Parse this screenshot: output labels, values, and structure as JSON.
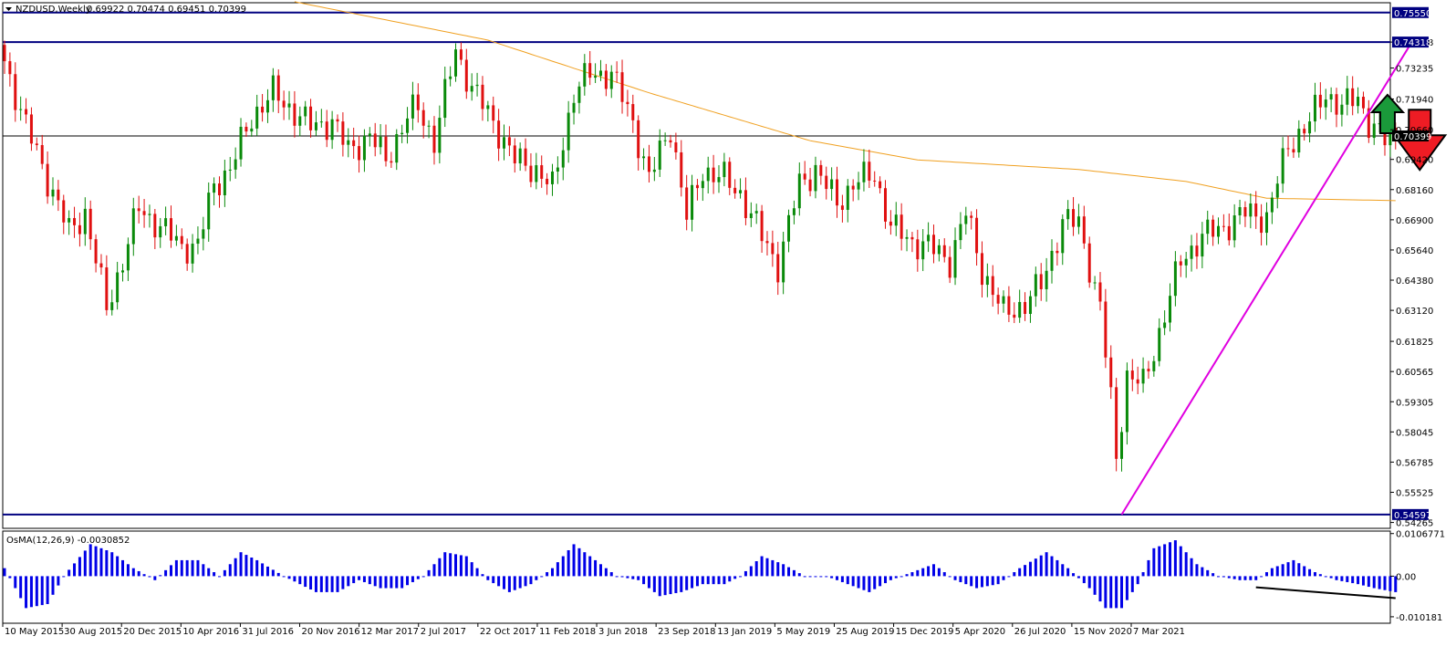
{
  "main_title": {
    "symbol": "NZDUSD,Weekly",
    "ohlc": "0.69922 0.70474 0.69451 0.70399"
  },
  "osma_title": "OsMA(12,26,9) -0.0030852",
  "colors": {
    "background": "#d6d6d6",
    "bull": "#0a8a0a",
    "bear": "#e01010",
    "ma": "#f0a020",
    "trendline": "#e000e0",
    "hline": "#000080",
    "histogram": "#0000e8",
    "divergence": "#000000",
    "up_arrow": "#1a9a3a",
    "down_arrow": "#ee1c24"
  },
  "icons": {
    "up_arrow": "up-arrow-icon",
    "down_arrow": "down-arrow-icon",
    "title_triangle": "dropdown-triangle-icon"
  },
  "chart_data": [
    {
      "type": "candlestick",
      "symbol": "NZDUSD",
      "timeframe": "Weekly",
      "y_ticks": [
        "0.74318",
        "0.73235",
        "0.71940",
        "0.70660",
        "0.69420",
        "0.68160",
        "0.66900",
        "0.65640",
        "0.64380",
        "0.63120",
        "0.61825",
        "0.60565",
        "0.59305",
        "0.58045",
        "0.56785",
        "0.55525",
        "0.54265"
      ],
      "x_ticks": [
        "10 May 2015",
        "30 Aug 2015",
        "20 Dec 2015",
        "10 Apr 2016",
        "31 Jul 2016",
        "20 Nov 2016",
        "12 Mar 2017",
        "2 Jul 2017",
        "22 Oct 2017",
        "11 Feb 2018",
        "3 Jun 2018",
        "23 Sep 2018",
        "13 Jan 2019",
        "5 May 2019",
        "25 Aug 2019",
        "15 Dec 2019",
        "5 Apr 2020",
        "26 Jul 2020",
        "15 Nov 2020",
        "7 Mar 2021"
      ],
      "horizontal_levels": [
        {
          "value": 0.7555,
          "label": "0.75550"
        },
        {
          "value": 0.74318,
          "label": "0.74318"
        },
        {
          "value": 0.54597,
          "label": "0.54597"
        }
      ],
      "current_price": {
        "value": 0.70399,
        "label": "0.70399"
      },
      "ylim": [
        0.5402,
        0.7596
      ],
      "price_path": [
        [
          0,
          0.742
        ],
        [
          5,
          0.708
        ],
        [
          9,
          0.686
        ],
        [
          13,
          0.664
        ],
        [
          16,
          0.672
        ],
        [
          20,
          0.632
        ],
        [
          23,
          0.652
        ],
        [
          26,
          0.674
        ],
        [
          30,
          0.666
        ],
        [
          34,
          0.658
        ],
        [
          37,
          0.658
        ],
        [
          40,
          0.684
        ],
        [
          43,
          0.69
        ],
        [
          47,
          0.712
        ],
        [
          51,
          0.722
        ],
        [
          54,
          0.716
        ],
        [
          58,
          0.708
        ],
        [
          62,
          0.71
        ],
        [
          65,
          0.698
        ],
        [
          69,
          0.704
        ],
        [
          72,
          0.694
        ],
        [
          76,
          0.712
        ],
        [
          78,
          0.716
        ],
        [
          81,
          0.702
        ],
        [
          85,
          0.74
        ],
        [
          88,
          0.724
        ],
        [
          92,
          0.71
        ],
        [
          96,
          0.694
        ],
        [
          100,
          0.69
        ],
        [
          103,
          0.682
        ],
        [
          107,
          0.722
        ],
        [
          110,
          0.73
        ],
        [
          114,
          0.73
        ],
        [
          118,
          0.71
        ],
        [
          121,
          0.686
        ],
        [
          125,
          0.708
        ],
        [
          128,
          0.67
        ],
        [
          131,
          0.69
        ],
        [
          135,
          0.686
        ],
        [
          138,
          0.68
        ],
        [
          142,
          0.662
        ],
        [
          145,
          0.65
        ],
        [
          149,
          0.684
        ],
        [
          152,
          0.69
        ],
        [
          156,
          0.676
        ],
        [
          159,
          0.684
        ],
        [
          163,
          0.688
        ],
        [
          166,
          0.666
        ],
        [
          170,
          0.66
        ],
        [
          173,
          0.658
        ],
        [
          177,
          0.652
        ],
        [
          180,
          0.672
        ],
        [
          183,
          0.648
        ],
        [
          187,
          0.63
        ],
        [
          191,
          0.634
        ],
        [
          194,
          0.642
        ],
        [
          198,
          0.668
        ],
        [
          201,
          0.668
        ],
        [
          205,
          0.632
        ],
        [
          207,
          0.594
        ],
        [
          208,
          0.57
        ],
        [
          210,
          0.604
        ],
        [
          213,
          0.6
        ],
        [
          216,
          0.622
        ],
        [
          220,
          0.652
        ],
        [
          224,
          0.662
        ],
        [
          228,
          0.666
        ],
        [
          232,
          0.672
        ],
        [
          236,
          0.67
        ],
        [
          240,
          0.7
        ],
        [
          244,
          0.71
        ],
        [
          247,
          0.722
        ],
        [
          250,
          0.716
        ],
        [
          253,
          0.72
        ],
        [
          255,
          0.71
        ],
        [
          258,
          0.702
        ],
        [
          259,
          0.704
        ]
      ],
      "moving_average": [
        [
          54,
          0.76
        ],
        [
          90,
          0.744
        ],
        [
          120,
          0.722
        ],
        [
          150,
          0.702
        ],
        [
          170,
          0.694
        ],
        [
          200,
          0.69
        ],
        [
          220,
          0.685
        ],
        [
          235,
          0.678
        ],
        [
          259,
          0.677
        ]
      ],
      "trendline": [
        {
          "x": 208,
          "y": 0.54597
        },
        {
          "x": 262,
          "y": 0.7431
        }
      ],
      "annotations": [
        {
          "type": "arrow",
          "direction": "up",
          "x": 257.5,
          "y": 0.712,
          "color": "green"
        },
        {
          "type": "arrow",
          "direction": "down",
          "x": 263.5,
          "y": 0.702,
          "color": "red"
        }
      ]
    },
    {
      "type": "histogram",
      "title": "OsMA(12,26,9) -0.0030852",
      "y_ticks": [
        "0.0106771",
        "0.00",
        "-0.010181"
      ],
      "ylim": [
        -0.0118,
        0.0113
      ],
      "osma_path": [
        [
          0,
          0.002
        ],
        [
          4,
          -0.008
        ],
        [
          8,
          -0.007
        ],
        [
          11,
          0.0
        ],
        [
          16,
          0.008
        ],
        [
          20,
          0.006
        ],
        [
          24,
          0.002
        ],
        [
          28,
          -0.001
        ],
        [
          32,
          0.004
        ],
        [
          36,
          0.004
        ],
        [
          40,
          0.0
        ],
        [
          44,
          0.006
        ],
        [
          47,
          0.004
        ],
        [
          52,
          0.0
        ],
        [
          58,
          -0.004
        ],
        [
          62,
          -0.004
        ],
        [
          66,
          -0.001
        ],
        [
          70,
          -0.003
        ],
        [
          74,
          -0.003
        ],
        [
          78,
          0.0
        ],
        [
          82,
          0.006
        ],
        [
          86,
          0.005
        ],
        [
          90,
          -0.001
        ],
        [
          94,
          -0.004
        ],
        [
          98,
          -0.002
        ],
        [
          102,
          0.002
        ],
        [
          106,
          0.008
        ],
        [
          110,
          0.004
        ],
        [
          114,
          0.0
        ],
        [
          118,
          -0.001
        ],
        [
          122,
          -0.005
        ],
        [
          126,
          -0.004
        ],
        [
          130,
          -0.002
        ],
        [
          134,
          -0.002
        ],
        [
          137,
          0.0
        ],
        [
          141,
          0.005
        ],
        [
          145,
          0.003
        ],
        [
          149,
          0.0
        ],
        [
          153,
          0.0
        ],
        [
          157,
          -0.002
        ],
        [
          161,
          -0.004
        ],
        [
          165,
          -0.001
        ],
        [
          169,
          0.001
        ],
        [
          173,
          0.003
        ],
        [
          177,
          -0.001
        ],
        [
          181,
          -0.003
        ],
        [
          185,
          -0.002
        ],
        [
          189,
          0.002
        ],
        [
          194,
          0.006
        ],
        [
          198,
          0.002
        ],
        [
          202,
          -0.003
        ],
        [
          205,
          -0.008
        ],
        [
          208,
          -0.008
        ],
        [
          211,
          -0.002
        ],
        [
          214,
          0.007
        ],
        [
          218,
          0.009
        ],
        [
          222,
          0.003
        ],
        [
          226,
          0.0
        ],
        [
          230,
          -0.001
        ],
        [
          233,
          -0.001
        ],
        [
          236,
          0.002
        ],
        [
          240,
          0.004
        ],
        [
          244,
          0.001
        ],
        [
          248,
          -0.001
        ],
        [
          252,
          -0.002
        ],
        [
          255,
          -0.003
        ],
        [
          259,
          -0.004
        ]
      ],
      "divergence_line": [
        {
          "x": 233,
          "y": -0.0028
        },
        {
          "x": 259,
          "y": -0.0055
        }
      ]
    }
  ]
}
